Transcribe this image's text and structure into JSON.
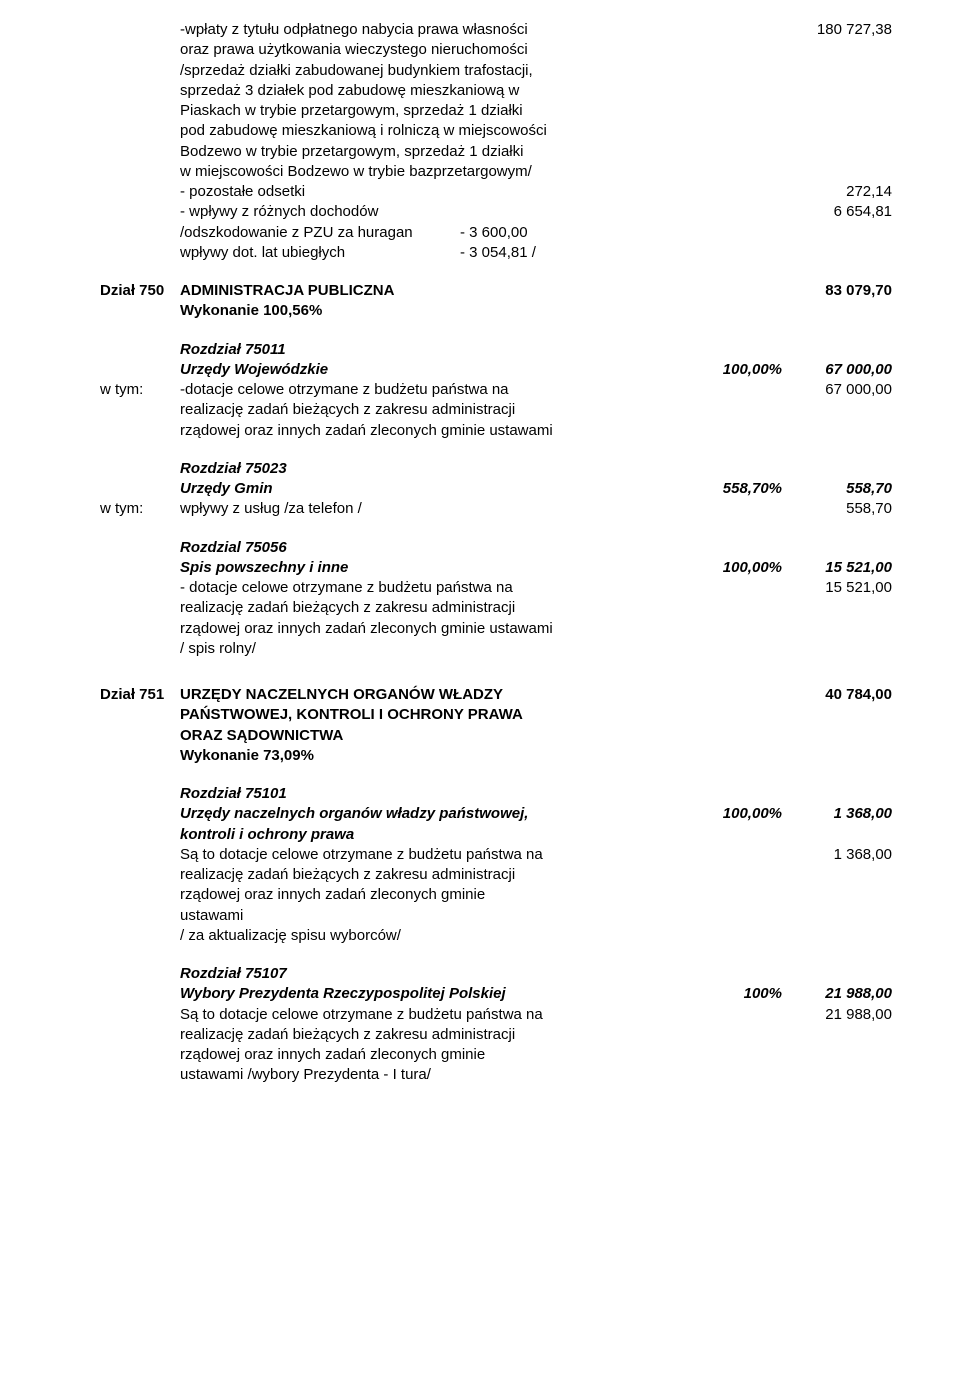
{
  "s0": {
    "l1": "-wpłaty z tytułu odpłatnego nabycia prawa własności",
    "l2": "oraz prawa użytkowania wieczystego nieruchomości",
    "l3": "/sprzedaż działki zabudowanej budynkiem trafostacji,",
    "l4": "sprzedaż 3 działek pod zabudowę mieszkaniową w",
    "l5": "Piaskach w trybie przetargowym, sprzedaż 1 działki",
    "l6": "pod zabudowę mieszkaniową i rolniczą w miejscowości",
    "l7": "Bodzewo w trybie przetargowym, sprzedaż 1 działki",
    "l8": "w miejscowości Bodzewo w trybie bazprzetargowym/",
    "v1": "180 727,38",
    "l9": " - pozostałe odsetki",
    "v9": "272,14",
    "l10": " - wpływy z różnych dochodów",
    "v10": "6 654,81",
    "l11a": "   /odszkodowanie z PZU za huragan",
    "l11b": "- 3 600,00",
    "l12a": "    wpływy dot. lat ubiegłych",
    "l12b": "- 3 054,81 /"
  },
  "d750": {
    "dzial_lbl": "Dział  750",
    "title": "ADMINISTRACJA  PUBLICZNA",
    "title_val": "83 079,70",
    "wyk": "Wykonanie 100,56%",
    "r011": {
      "roz": "Rozdział 75011",
      "name": "Urzędy Wojewódzkie",
      "pct": "100,00%",
      "val": "67 000,00",
      "wtym": "w tym:",
      "l1": "-dotacje celowe otrzymane z budżetu państwa na",
      "v1": "67 000,00",
      "l2": "realizację zadań bieżących z zakresu administracji",
      "l3": "rządowej oraz innych zadań zleconych gminie ustawami"
    },
    "r023": {
      "roz": "Rozdział 75023",
      "name": "Urzędy Gmin",
      "pct": "558,70%",
      "val": "558,70",
      "wtym": "w tym:",
      "l1": "wpływy z usług  /za telefon /",
      "v1": "558,70"
    },
    "r056": {
      "roz": "Rozdzial 75056",
      "name": "Spis powszechny i inne",
      "pct": "100,00%",
      "val": "15 521,00",
      "l1": " - dotacje celowe otrzymane z budżetu państwa na",
      "v1": "15 521,00",
      "l2": "realizację zadań bieżących z zakresu administracji",
      "l3": "rządowej oraz innych zadań zleconych gminie ustawami",
      "l4": "/ spis rolny/"
    }
  },
  "d751": {
    "dzial_lbl": "Dział  751",
    "title1": "URZĘDY NACZELNYCH ORGANÓW WŁADZY",
    "title2": "PAŃSTWOWEJ, KONTROLI I OCHRONY PRAWA",
    "title3": "ORAZ SĄDOWNICTWA",
    "title_val": "40 784,00",
    "wyk": "Wykonanie 73,09%",
    "r101": {
      "roz": "Rozdział 75101",
      "name1": "Urzędy naczelnych organów władzy państwowej,",
      "name2": "kontroli i ochrony prawa",
      "pct": "100,00%",
      "val": "1 368,00",
      "l1": "Są to dotacje celowe otrzymane z budżetu państwa na",
      "v1": "1 368,00",
      "l2": "realizację zadań bieżących z zakresu administracji",
      "l3": "rządowej  oraz innych zadań zleconych gminie",
      "l4": "ustawami",
      "l5": "/ za aktualizację spisu wyborców/"
    },
    "r107": {
      "roz": "Rozdział 75107",
      "name": "Wybory Prezydenta Rzeczypospolitej Polskiej",
      "pct": "100%",
      "val": "21 988,00",
      "l1": "Są to dotacje celowe otrzymane z budżetu państwa na",
      "v1": "21 988,00",
      "l2": "realizację zadań bieżących z zakresu administracji",
      "l3": "rządowej  oraz innych zadań zleconych gminie",
      "l4": "ustawami  /wybory Prezydenta - I tura/"
    }
  }
}
